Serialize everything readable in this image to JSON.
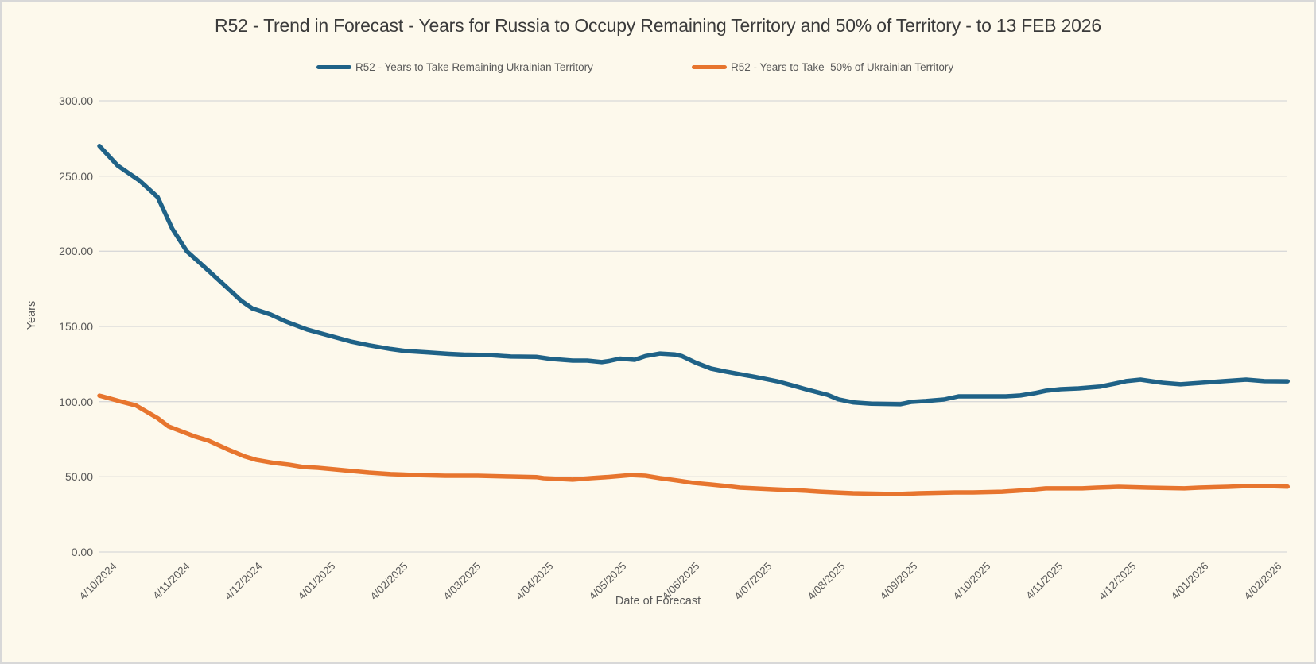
{
  "window": {
    "background_color": "#FDF9EC",
    "border_color": "#D8D8D8",
    "gridline_color": "#D9D9D9"
  },
  "chart_data": {
    "type": "line",
    "title": "R52 - Trend in Forecast - Years for Russia to Occupy Remaining Territory and 50% of Territory - to 13 FEB 2026",
    "xlabel": "Date of Forecast",
    "ylabel": "Years",
    "ylim": [
      0,
      300
    ],
    "grid": "horizontal",
    "legend_position": "top",
    "y_tick_labels": [
      "300.00",
      "250.00",
      "200.00",
      "150.00",
      "100.00",
      "50.00",
      "0.00"
    ],
    "x_tick_labels": [
      "4/10/2024",
      "4/11/2024",
      "4/12/2024",
      "4/01/2025",
      "4/02/2025",
      "4/03/2025",
      "4/04/2025",
      "4/05/2025",
      "4/06/2025",
      "4/07/2025",
      "4/08/2025",
      "4/09/2025",
      "4/10/2025",
      "4/11/2025",
      "4/12/2025",
      "4/01/2026",
      "4/02/2026"
    ],
    "x_unit": "calendar months after first tick 4/10/2024; data extends to 13 FEB 2026 (x = 16.32)",
    "series": [
      {
        "name": "R52 - Years to Take Remaining Ukrainian Territory",
        "color": "#1F6287",
        "points": [
          [
            0,
            270
          ],
          [
            0.25,
            257
          ],
          [
            0.4,
            252
          ],
          [
            0.55,
            247
          ],
          [
            0.8,
            236
          ],
          [
            1.0,
            215
          ],
          [
            1.2,
            200
          ],
          [
            1.5,
            187
          ],
          [
            1.75,
            176
          ],
          [
            1.95,
            167
          ],
          [
            2.1,
            162
          ],
          [
            2.35,
            158
          ],
          [
            2.55,
            153.5
          ],
          [
            2.85,
            148
          ],
          [
            3.0,
            146
          ],
          [
            3.15,
            144
          ],
          [
            3.45,
            140
          ],
          [
            3.7,
            137.5
          ],
          [
            4.0,
            135
          ],
          [
            4.2,
            133.7
          ],
          [
            4.5,
            132.8
          ],
          [
            4.8,
            131.8
          ],
          [
            5.0,
            131.3
          ],
          [
            5.35,
            131
          ],
          [
            5.65,
            130
          ],
          [
            6.0,
            129.8
          ],
          [
            6.2,
            128.4
          ],
          [
            6.5,
            127.3
          ],
          [
            6.7,
            127.3
          ],
          [
            6.9,
            126.3
          ],
          [
            7.0,
            127
          ],
          [
            7.15,
            128.6
          ],
          [
            7.35,
            127.8
          ],
          [
            7.5,
            130.3
          ],
          [
            7.7,
            132
          ],
          [
            7.9,
            131.4
          ],
          [
            8.0,
            130.3
          ],
          [
            8.2,
            125.7
          ],
          [
            8.4,
            122
          ],
          [
            8.6,
            120
          ],
          [
            8.85,
            117.8
          ],
          [
            9.0,
            116.5
          ],
          [
            9.3,
            113.6
          ],
          [
            9.5,
            111
          ],
          [
            9.7,
            108.3
          ],
          [
            10.0,
            104.5
          ],
          [
            10.15,
            101.5
          ],
          [
            10.35,
            99.5
          ],
          [
            10.6,
            98.6
          ],
          [
            11.0,
            98.3
          ],
          [
            11.15,
            99.8
          ],
          [
            11.35,
            100.4
          ],
          [
            11.6,
            101.4
          ],
          [
            11.8,
            103.5
          ],
          [
            12.0,
            103.5
          ],
          [
            12.45,
            103.5
          ],
          [
            12.65,
            104.1
          ],
          [
            12.85,
            105.7
          ],
          [
            13.0,
            107.2
          ],
          [
            13.2,
            108.3
          ],
          [
            13.45,
            108.8
          ],
          [
            13.75,
            110
          ],
          [
            14.0,
            112.5
          ],
          [
            14.1,
            113.6
          ],
          [
            14.3,
            114.6
          ],
          [
            14.6,
            112.5
          ],
          [
            14.85,
            111.5
          ],
          [
            15.0,
            112
          ],
          [
            15.45,
            113.6
          ],
          [
            15.75,
            114.6
          ],
          [
            16.0,
            113.6
          ],
          [
            16.32,
            113.5
          ]
        ]
      },
      {
        "name": "R52 - Years to Take  50% of Ukrainian Territory",
        "color": "#E7752E",
        "points": [
          [
            0,
            104
          ],
          [
            0.3,
            100
          ],
          [
            0.5,
            97.5
          ],
          [
            0.8,
            89
          ],
          [
            0.95,
            83.5
          ],
          [
            1.3,
            77
          ],
          [
            1.5,
            74
          ],
          [
            1.75,
            68.5
          ],
          [
            2.0,
            63.5
          ],
          [
            2.15,
            61.3
          ],
          [
            2.4,
            59.2
          ],
          [
            2.6,
            58.1
          ],
          [
            2.8,
            56.5
          ],
          [
            3.0,
            56
          ],
          [
            3.25,
            54.9
          ],
          [
            3.45,
            53.9
          ],
          [
            3.7,
            52.8
          ],
          [
            4.0,
            51.8
          ],
          [
            4.35,
            51.2
          ],
          [
            4.75,
            50.7
          ],
          [
            5.2,
            50.7
          ],
          [
            5.65,
            50.2
          ],
          [
            6.0,
            49.8
          ],
          [
            6.1,
            49.1
          ],
          [
            6.5,
            48.1
          ],
          [
            6.75,
            49.1
          ],
          [
            7.0,
            49.9
          ],
          [
            7.3,
            51.2
          ],
          [
            7.5,
            50.7
          ],
          [
            7.7,
            49.1
          ],
          [
            7.95,
            47.5
          ],
          [
            8.15,
            46
          ],
          [
            8.4,
            44.9
          ],
          [
            8.6,
            43.9
          ],
          [
            8.8,
            42.8
          ],
          [
            9.0,
            42.3
          ],
          [
            9.25,
            41.7
          ],
          [
            9.5,
            41.2
          ],
          [
            9.7,
            40.7
          ],
          [
            9.9,
            40.1
          ],
          [
            10.1,
            39.6
          ],
          [
            10.35,
            39.1
          ],
          [
            10.85,
            38.6
          ],
          [
            11.0,
            38.6
          ],
          [
            11.25,
            39.1
          ],
          [
            11.75,
            39.6
          ],
          [
            12.0,
            39.6
          ],
          [
            12.4,
            40.1
          ],
          [
            12.75,
            41.2
          ],
          [
            13.0,
            42.3
          ],
          [
            13.5,
            42.3
          ],
          [
            13.7,
            42.8
          ],
          [
            14.0,
            43.3
          ],
          [
            14.4,
            42.8
          ],
          [
            14.9,
            42.3
          ],
          [
            15.1,
            42.8
          ],
          [
            15.5,
            43.3
          ],
          [
            15.8,
            43.9
          ],
          [
            16.0,
            43.9
          ],
          [
            16.32,
            43.4
          ]
        ]
      }
    ]
  }
}
